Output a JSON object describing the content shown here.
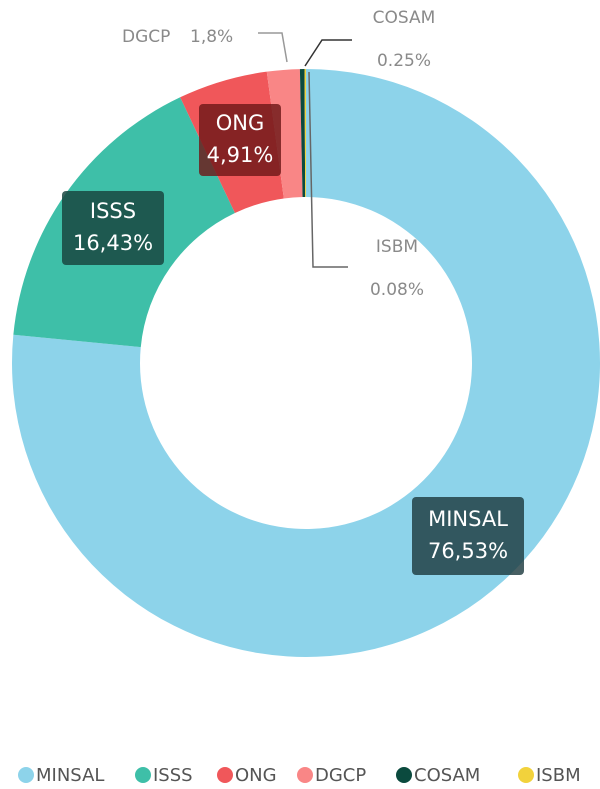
{
  "chart_data": {
    "type": "pie",
    "donut": true,
    "categories": [
      "MINSAL",
      "ISSS",
      "ONG",
      "DGCP",
      "COSAM",
      "ISBM"
    ],
    "values": [
      76.53,
      16.43,
      4.91,
      1.8,
      0.25,
      0.08
    ],
    "value_labels": [
      "76,53%",
      "16,43%",
      "4,91%",
      "1,8%",
      "0.25%",
      "0.08%"
    ],
    "colors": [
      "#8dd3ea",
      "#3ebfa8",
      "#f0575a",
      "#f98686",
      "#0b4a3e",
      "#f2d23c"
    ],
    "legend": "bottom"
  }
}
